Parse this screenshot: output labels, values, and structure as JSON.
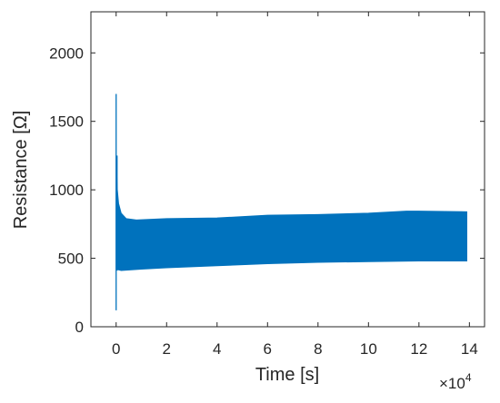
{
  "chart_data": {
    "type": "line",
    "title": "",
    "xlabel": "Time [s]",
    "ylabel": "Resistance [Ω]",
    "x_scale_multiplier_label": "×10",
    "x_scale_multiplier_exponent": "4",
    "xlim": [
      -1,
      14.6
    ],
    "ylim": [
      0,
      2300
    ],
    "x_ticks": [
      0,
      2,
      4,
      6,
      8,
      10,
      12,
      14
    ],
    "y_ticks": [
      0,
      500,
      1000,
      1500,
      2000
    ],
    "grid": false,
    "legend": "none",
    "line_color": "#0072BD",
    "series": [
      {
        "description_unit_x": "×10^4 s",
        "initial_spike": [
          {
            "x": 0.0,
            "y_min": 120,
            "y_max": 1700
          }
        ],
        "upper_envelope": [
          {
            "x": 0.0,
            "y": 1250
          },
          {
            "x": 0.05,
            "y": 1000
          },
          {
            "x": 0.1,
            "y": 900
          },
          {
            "x": 0.2,
            "y": 830
          },
          {
            "x": 0.4,
            "y": 790
          },
          {
            "x": 0.8,
            "y": 780
          },
          {
            "x": 2,
            "y": 790
          },
          {
            "x": 4,
            "y": 795
          },
          {
            "x": 6,
            "y": 815
          },
          {
            "x": 8,
            "y": 820
          },
          {
            "x": 10,
            "y": 830
          },
          {
            "x": 11.5,
            "y": 845
          },
          {
            "x": 12,
            "y": 845
          },
          {
            "x": 13.9,
            "y": 840
          }
        ],
        "lower_envelope": [
          {
            "x": 0.0,
            "y": 420
          },
          {
            "x": 0.2,
            "y": 410
          },
          {
            "x": 1,
            "y": 420
          },
          {
            "x": 2,
            "y": 430
          },
          {
            "x": 4,
            "y": 445
          },
          {
            "x": 6,
            "y": 460
          },
          {
            "x": 8,
            "y": 470
          },
          {
            "x": 10,
            "y": 475
          },
          {
            "x": 12,
            "y": 480
          },
          {
            "x": 13.9,
            "y": 480
          }
        ]
      }
    ]
  }
}
